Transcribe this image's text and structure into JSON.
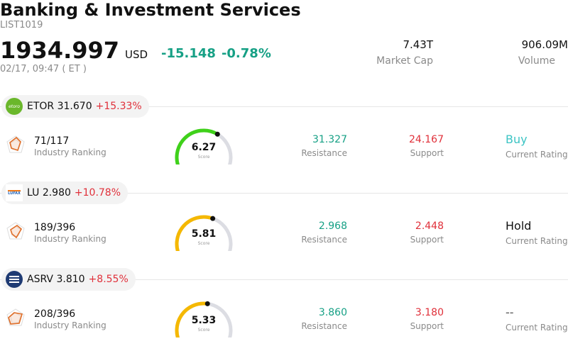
{
  "header": {
    "title": "Banking & Investment Services",
    "code": "LIST1019",
    "price": "1934.997",
    "currency": "USD",
    "change": "-15.148",
    "change_pct": "-0.78%",
    "timestamp": "02/17, 09:47  ( ET )",
    "market_cap_value": "7.43T",
    "market_cap_label": "Market Cap",
    "volume_value": "906.09M",
    "volume_label": "Volume"
  },
  "stocks": [
    {
      "ticker": "ETOR",
      "price": "31.670",
      "pct": "+15.33%",
      "logo_icon": "etoro-logo",
      "logo_color": "#6ab72b",
      "logo_text": "etoro",
      "ranking": "71/117",
      "ranking_label": "Industry Ranking",
      "score": "6.27",
      "score_label": "Score",
      "score_value": 6.27,
      "gauge_color": "#3fd11a",
      "resistance": "31.327",
      "resistance_label": "Resistance",
      "support": "24.167",
      "support_label": "Support",
      "rating": "Buy",
      "rating_color": "#3cc4c4",
      "rating_label": "Current Rating"
    },
    {
      "ticker": "LU",
      "price": "2.980",
      "pct": "+10.78%",
      "logo_icon": "lufax-logo",
      "logo_color": "#ffffff",
      "logo_text": "LUFAX",
      "ranking": "189/396",
      "ranking_label": "Industry Ranking",
      "score": "5.81",
      "score_label": "Score",
      "score_value": 5.81,
      "gauge_color": "#f5b800",
      "resistance": "2.968",
      "resistance_label": "Resistance",
      "support": "2.448",
      "support_label": "Support",
      "rating": "Hold",
      "rating_color": "#111111",
      "rating_label": "Current Rating"
    },
    {
      "ticker": "ASRV",
      "price": "3.810",
      "pct": "+8.55%",
      "logo_icon": "ameriserv-logo",
      "logo_color": "#1f3b73",
      "logo_text": "",
      "ranking": "208/396",
      "ranking_label": "Industry Ranking",
      "score": "5.33",
      "score_label": "Score",
      "score_value": 5.33,
      "gauge_color": "#f5b800",
      "resistance": "3.860",
      "resistance_label": "Resistance",
      "support": "3.180",
      "support_label": "Support",
      "rating": "--",
      "rating_color": "#555555",
      "rating_label": "Current Rating"
    }
  ]
}
